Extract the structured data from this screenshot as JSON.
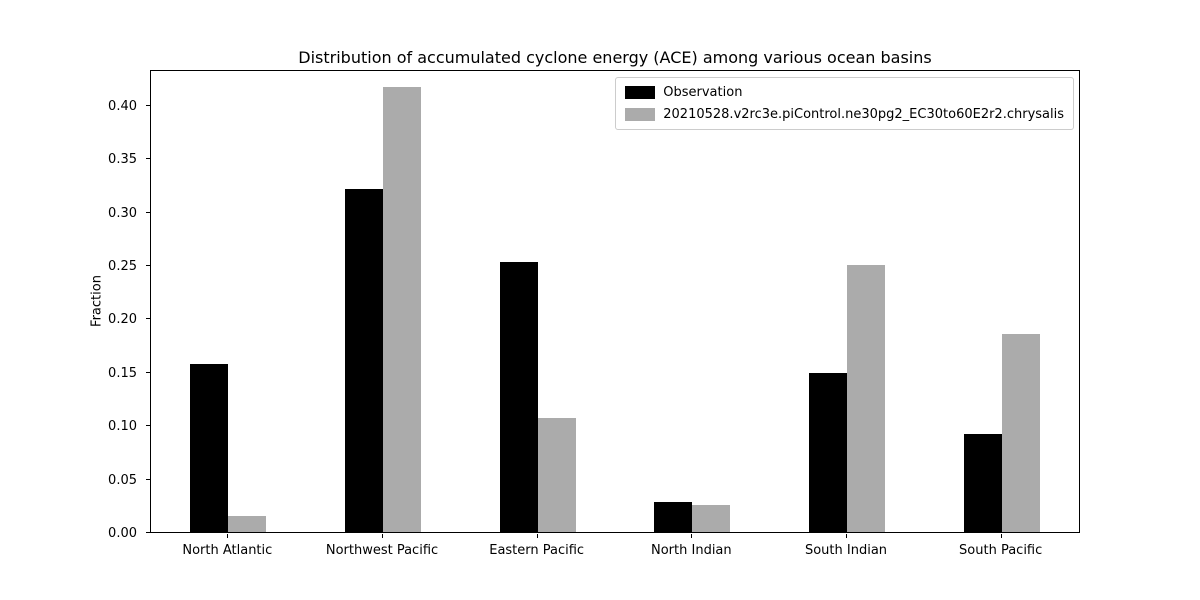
{
  "chart_data": {
    "type": "bar",
    "title": "Distribution of accumulated cyclone energy (ACE) among various ocean basins",
    "xlabel": "",
    "ylabel": "Fraction",
    "categories": [
      "North Atlantic",
      "Northwest Pacific",
      "Eastern Pacific",
      "North Indian",
      "South Indian",
      "South Pacific"
    ],
    "series": [
      {
        "name": "Observation",
        "color": "#000000",
        "values": [
          0.157,
          0.321,
          0.253,
          0.028,
          0.149,
          0.092
        ]
      },
      {
        "name": "20210528.v2rc3e.piControl.ne30pg2_EC30to60E2r2.chrysalis",
        "color": "#ababab",
        "values": [
          0.015,
          0.417,
          0.107,
          0.025,
          0.25,
          0.185
        ]
      }
    ],
    "ylim": [
      0,
      0.4317
    ],
    "yticks": [
      0.0,
      0.05,
      0.1,
      0.15,
      0.2,
      0.25,
      0.3,
      0.35,
      0.4
    ],
    "ytick_labels": [
      "0.00",
      "0.05",
      "0.10",
      "0.15",
      "0.20",
      "0.25",
      "0.30",
      "0.35",
      "0.40"
    ],
    "grid": false,
    "legend_position": "upper right"
  }
}
